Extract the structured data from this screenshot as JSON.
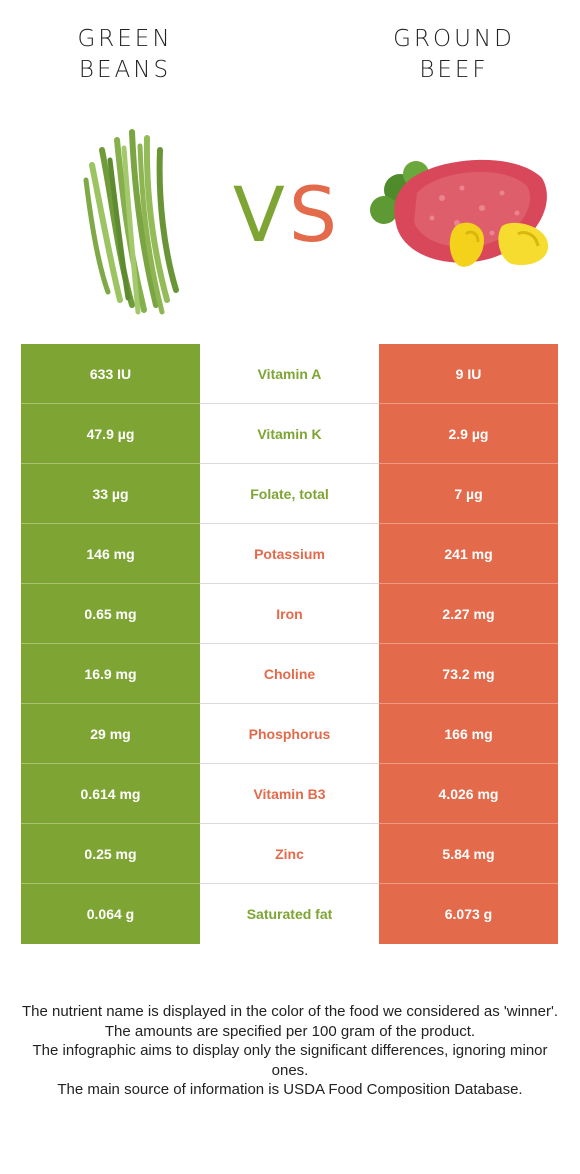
{
  "header": {
    "left_food": [
      "GREEN",
      "BEANS"
    ],
    "right_food": [
      "GROUND",
      "BEEF"
    ],
    "vs_label_v": "V",
    "vs_label_s": "S"
  },
  "colors": {
    "left_accent": "#7ea534",
    "right_accent": "#e36a4a"
  },
  "rows": [
    {
      "left": "633 IU",
      "nutrient": "Vitamin A",
      "right": "9 IU",
      "winner": "left"
    },
    {
      "left": "47.9 µg",
      "nutrient": "Vitamin K",
      "right": "2.9 µg",
      "winner": "left"
    },
    {
      "left": "33 µg",
      "nutrient": "Folate, total",
      "right": "7 µg",
      "winner": "left"
    },
    {
      "left": "146 mg",
      "nutrient": "Potassium",
      "right": "241 mg",
      "winner": "right"
    },
    {
      "left": "0.65 mg",
      "nutrient": "Iron",
      "right": "2.27 mg",
      "winner": "right"
    },
    {
      "left": "16.9 mg",
      "nutrient": "Choline",
      "right": "73.2 mg",
      "winner": "right"
    },
    {
      "left": "29 mg",
      "nutrient": "Phosphorus",
      "right": "166 mg",
      "winner": "right"
    },
    {
      "left": "0.614 mg",
      "nutrient": "Vitamin B3",
      "right": "4.026 mg",
      "winner": "right"
    },
    {
      "left": "0.25 mg",
      "nutrient": "Zinc",
      "right": "5.84 mg",
      "winner": "right"
    },
    {
      "left": "0.064 g",
      "nutrient": "Saturated fat",
      "right": "6.073 g",
      "winner": "left"
    }
  ],
  "footer": [
    "The nutrient name is displayed in the color of the food we considered as 'winner'.",
    "The amounts are specified per 100 gram of the product.",
    "The infographic aims to display only the significant differences, ignoring minor ones.",
    "The main source of information is USDA Food Composition Database."
  ]
}
